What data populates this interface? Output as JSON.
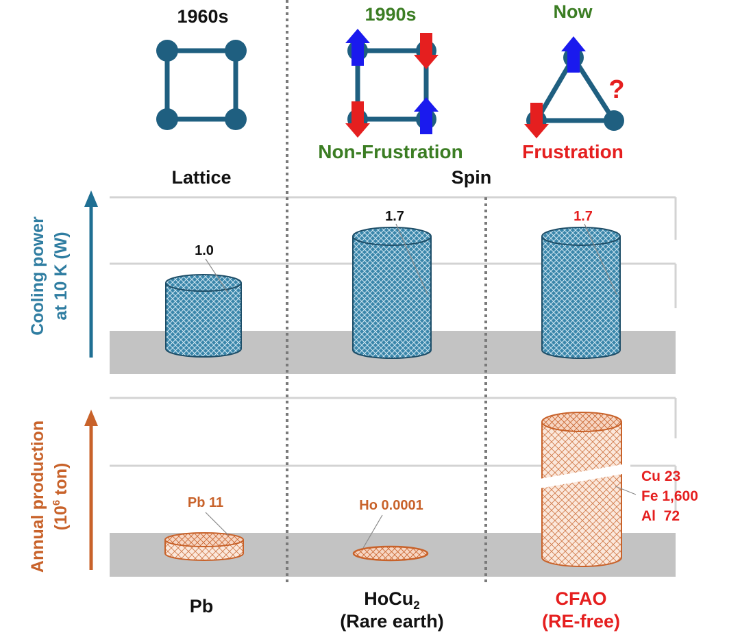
{
  "colors": {
    "node": "#1f5f80",
    "cooling": "#2f7da1",
    "production": "#c8622a",
    "green": "#3b7d23",
    "red": "#e51f1f",
    "spin_up": "#1a1aee",
    "spin_down": "#e51f1f",
    "gray_band": "#c3c3c3",
    "grid": "#d3d3d3",
    "divider": "#7a7a7a"
  },
  "eras": {
    "e1960s": "1960s",
    "e1990s": "1990s",
    "now": "Now"
  },
  "frustration": {
    "non": "Non-Frustration",
    "yes": "Frustration",
    "question": "?"
  },
  "categories": {
    "lattice": "Lattice",
    "spin": "Spin"
  },
  "axes": {
    "cooling_line1": "Cooling power",
    "cooling_line2": "at 10 K (W)",
    "production_line1": "Annual production",
    "production_line2_pre": "(10",
    "production_line2_sup": "6",
    "production_line2_post": " ton)"
  },
  "cooling_values": {
    "pb": "1.0",
    "hocu2": "1.7",
    "cfao": "1.7"
  },
  "production_values": {
    "pb": "Pb 11",
    "ho": "Ho 0.0001",
    "cu": "Cu 23",
    "fe": "Fe 1,600",
    "al": "Al  72"
  },
  "materials": {
    "pb": "Pb",
    "hocu2_pre": "HoCu",
    "hocu2_sub": "2",
    "hocu2_note": "(Rare earth)",
    "cfao": "CFAO",
    "cfao_note": "(RE-free)"
  }
}
